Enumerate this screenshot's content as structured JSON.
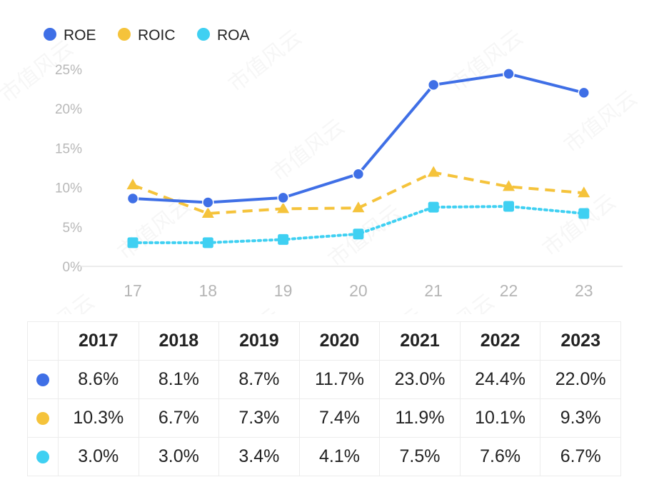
{
  "chart_data": {
    "type": "line",
    "title": "",
    "xlabel": "",
    "ylabel": "",
    "categories": [
      "17",
      "18",
      "19",
      "20",
      "21",
      "22",
      "23"
    ],
    "ylim": [
      0,
      25
    ],
    "yticks": [
      0,
      5,
      10,
      15,
      20,
      25
    ],
    "ytick_labels": [
      "0%",
      "5%",
      "10%",
      "15%",
      "20%",
      "25%"
    ],
    "legend_position": "top-left",
    "grid": false,
    "series": [
      {
        "name": "ROE",
        "color": "#3f6fe6",
        "style": "solid",
        "marker": "circle",
        "values": [
          8.6,
          8.1,
          8.7,
          11.7,
          23.0,
          24.4,
          22.0
        ]
      },
      {
        "name": "ROIC",
        "color": "#f5c33b",
        "style": "dashed",
        "marker": "triangle",
        "values": [
          10.3,
          6.7,
          7.3,
          7.4,
          11.9,
          10.1,
          9.3
        ]
      },
      {
        "name": "ROA",
        "color": "#3fd0f2",
        "style": "dotted",
        "marker": "square",
        "values": [
          3.0,
          3.0,
          3.4,
          4.1,
          7.5,
          7.6,
          6.7
        ]
      }
    ]
  },
  "table": {
    "headers": [
      "2017",
      "2018",
      "2019",
      "2020",
      "2021",
      "2022",
      "2023"
    ],
    "rows": [
      {
        "color": "#3f6fe6",
        "cells": [
          "8.6%",
          "8.1%",
          "8.7%",
          "11.7%",
          "23.0%",
          "24.4%",
          "22.0%"
        ]
      },
      {
        "color": "#f5c33b",
        "cells": [
          "10.3%",
          "6.7%",
          "7.3%",
          "7.4%",
          "11.9%",
          "10.1%",
          "9.3%"
        ]
      },
      {
        "color": "#3fd0f2",
        "cells": [
          "3.0%",
          "3.0%",
          "3.4%",
          "4.1%",
          "7.5%",
          "7.6%",
          "6.7%"
        ]
      }
    ]
  },
  "watermark": "市值风云"
}
